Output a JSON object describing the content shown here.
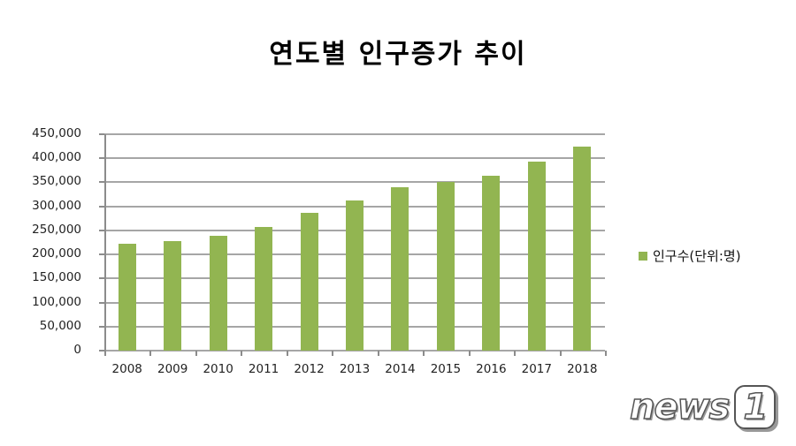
{
  "title": "연도별 인구증가 추이",
  "legend": {
    "label": "인구수(단위:명)",
    "color": "#92b551"
  },
  "watermark": {
    "text": "news",
    "number": "1"
  },
  "y_axis": {
    "ticks": [
      "450,000",
      "400,000",
      "350,000",
      "300,000",
      "250,000",
      "200,000",
      "150,000",
      "100,000",
      "50,000",
      "0"
    ]
  },
  "x_axis": {
    "ticks": [
      "2008",
      "2009",
      "2010",
      "2011",
      "2012",
      "2013",
      "2014",
      "2015",
      "2016",
      "2017",
      "2018"
    ]
  },
  "chart_data": {
    "type": "bar",
    "title": "연도별 인구증가 추이",
    "xlabel": "",
    "ylabel": "",
    "categories": [
      "2008",
      "2009",
      "2010",
      "2011",
      "2012",
      "2013",
      "2014",
      "2015",
      "2016",
      "2017",
      "2018"
    ],
    "series": [
      {
        "name": "인구수(단위:명)",
        "color": "#92b551",
        "values": [
          222000,
          228000,
          239000,
          257000,
          287000,
          312000,
          340000,
          351000,
          364000,
          393000,
          424000
        ]
      }
    ],
    "ylim": [
      0,
      450000
    ],
    "y_ticks": [
      0,
      50000,
      100000,
      150000,
      200000,
      250000,
      300000,
      350000,
      400000,
      450000
    ],
    "grid": true,
    "legend_position": "right"
  }
}
